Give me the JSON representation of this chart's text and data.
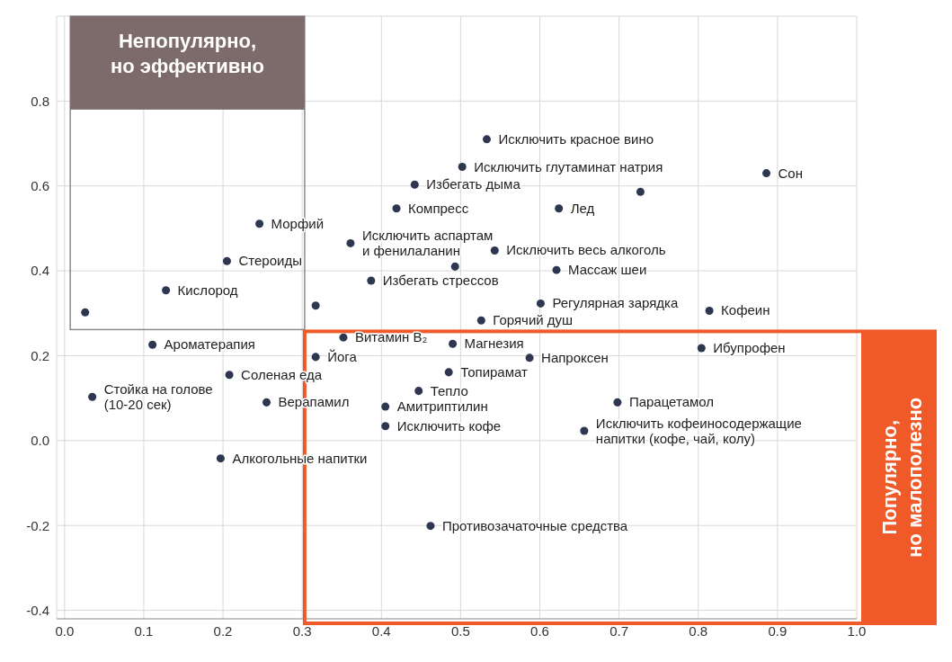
{
  "chart_data": {
    "type": "scatter",
    "xlim": [
      -0.01,
      1.0
    ],
    "ylim": [
      -0.42,
      1.0
    ],
    "xticks": [
      {
        "value": 0,
        "label": "0.0"
      },
      0.1,
      0.2,
      0.3,
      0.4,
      0.5,
      0.6,
      0.7,
      0.8,
      0.9,
      {
        "value": 1,
        "label": "1.0"
      }
    ],
    "yticks": [
      -0.4,
      -0.2,
      {
        "value": 0,
        "label": "0.0"
      },
      0.2,
      0.4,
      0.6,
      0.8
    ],
    "grid": true,
    "marker": "circle",
    "legend": false,
    "series": [
      {
        "color": "#2e3750",
        "x": [
          0.886,
          0.533,
          0.502,
          0.727,
          0.442,
          0.419,
          0.624,
          0.246,
          0.361,
          0.543,
          0.205,
          0.493,
          0.621,
          0.128,
          0.387,
          0.026,
          0.317,
          0.601,
          0.814,
          0.526,
          0.352,
          0.49,
          0.111,
          0.804,
          0.317,
          0.587,
          0.485,
          0.208,
          0.447,
          0.035,
          0.255,
          0.698,
          0.405,
          0.405,
          0.656,
          0.197,
          0.462
        ],
        "values": [
          0.63,
          0.71,
          0.645,
          0.586,
          0.603,
          0.547,
          0.547,
          0.511,
          0.465,
          0.448,
          0.423,
          0.41,
          0.402,
          0.354,
          0.377,
          0.302,
          0.318,
          0.323,
          0.306,
          0.283,
          0.243,
          0.228,
          0.226,
          0.218,
          0.197,
          0.195,
          0.161,
          0.155,
          0.117,
          0.103,
          0.09,
          0.09,
          0.08,
          0.034,
          0.023,
          -0.042,
          -0.201
        ]
      }
    ],
    "annotations": [
      "Непопулярно,\nно эффективно",
      "Популярно,\nно малополезно",
      {
        "text": "Сон",
        "x": 0.886,
        "y": 0.63
      },
      {
        "text": "Исключить красное вино",
        "x": 0.533,
        "y": 0.71
      },
      {
        "text": "Исключить глутаминат натрия",
        "x": 0.502,
        "y": 0.645
      },
      {
        "text": "Избегать дыма",
        "x": 0.442,
        "y": 0.603
      },
      {
        "text": "Компресс",
        "x": 0.419,
        "y": 0.547
      },
      {
        "text": "Лед",
        "x": 0.624,
        "y": 0.547
      },
      {
        "text": "Морфий",
        "x": 0.246,
        "y": 0.511
      },
      {
        "text": "Исключить аспартам\nи фенилаланин",
        "x": 0.361,
        "y": 0.465
      },
      {
        "text": "Исключить весь алкоголь",
        "x": 0.543,
        "y": 0.448
      },
      {
        "text": "Стероиды",
        "x": 0.205,
        "y": 0.423
      },
      {
        "text": "Массаж шеи",
        "x": 0.621,
        "y": 0.402
      },
      {
        "text": "Кислород",
        "x": 0.128,
        "y": 0.354
      },
      {
        "text": "Избегать стрессов",
        "x": 0.387,
        "y": 0.377
      },
      {
        "text": "Регулярная зарядка",
        "x": 0.601,
        "y": 0.323
      },
      {
        "text": "Кофеин",
        "x": 0.814,
        "y": 0.306
      },
      {
        "text": "Горячий душ",
        "x": 0.526,
        "y": 0.283
      },
      {
        "text": "Витамин B₂",
        "x": 0.352,
        "y": 0.243
      },
      {
        "text": "Магнезия",
        "x": 0.49,
        "y": 0.228
      },
      {
        "text": "Ароматерапия",
        "x": 0.111,
        "y": 0.226
      },
      {
        "text": "Ибупрофен",
        "x": 0.804,
        "y": 0.218
      },
      {
        "text": "Йога",
        "x": 0.317,
        "y": 0.197
      },
      {
        "text": "Напроксен",
        "x": 0.587,
        "y": 0.195
      },
      {
        "text": "Топирамат",
        "x": 0.485,
        "y": 0.161
      },
      {
        "text": "Соленая еда",
        "x": 0.208,
        "y": 0.155
      },
      {
        "text": "Тепло",
        "x": 0.447,
        "y": 0.117
      },
      {
        "text": "Стойка на голове\n(10-20 сек)",
        "x": 0.035,
        "y": 0.103
      },
      {
        "text": "Верапамил",
        "x": 0.255,
        "y": 0.09
      },
      {
        "text": "Парацетамол",
        "x": 0.698,
        "y": 0.09
      },
      {
        "text": "Амитриптилин",
        "x": 0.405,
        "y": 0.08
      },
      {
        "text": "Исключить кофе",
        "x": 0.405,
        "y": 0.034
      },
      {
        "text": "Исключить кофеиносодержащие\nнапитки (кофе, чай, колу)",
        "x": 0.656,
        "y": 0.023
      },
      {
        "text": "Алкогольные напитки",
        "x": 0.197,
        "y": -0.042
      },
      {
        "text": "Противозачаточные средства",
        "x": 0.462,
        "y": -0.201
      }
    ]
  }
}
